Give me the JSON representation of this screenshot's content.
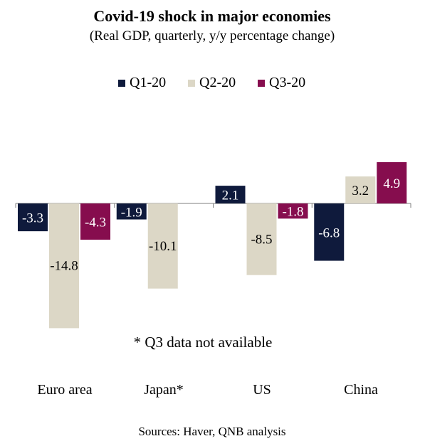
{
  "chart_data": {
    "type": "bar",
    "title": "Covid-19 shock in major economies",
    "subtitle": "(Real GDP, quarterly, y/y percentage change)",
    "categories": [
      "Euro area",
      "Japan*",
      "US",
      "China"
    ],
    "series": [
      {
        "name": "Q1-20",
        "color": "#0f1a3c",
        "values": [
          -3.3,
          -1.9,
          2.1,
          -6.8
        ]
      },
      {
        "name": "Q2-20",
        "color": "#dcd7c6",
        "values": [
          -14.8,
          -10.1,
          -8.5,
          3.2
        ]
      },
      {
        "name": "Q3-20",
        "color": "#860d4e",
        "values": [
          -4.3,
          null,
          -1.8,
          4.9
        ]
      }
    ],
    "value_labels": [
      [
        "-3.3",
        "-1.9",
        "2.1",
        "-6.8"
      ],
      [
        "-14.8",
        "-10.1",
        "-8.5",
        "3.2"
      ],
      [
        "-4.3",
        "",
        "-1.8",
        "4.9"
      ]
    ],
    "legend_position": "top",
    "note": "* Q3  data not available",
    "source": "Sources: Haver, QNB analysis",
    "ylim": [
      -15,
      6
    ],
    "grid": false
  }
}
